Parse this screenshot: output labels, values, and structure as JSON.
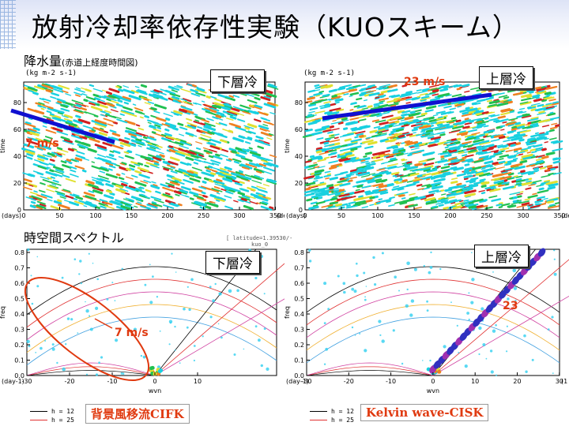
{
  "title": {
    "text": "放射冷却率依存性実験（KUOスキーム）"
  },
  "precip_section": {
    "label": "降水量",
    "sublabel": "(赤道上経度時間図)"
  },
  "spectrum_section": {
    "label": "時空間スペクトル"
  },
  "hovmoller_left": {
    "units": "(kg m-2 s-1)",
    "callout": "下層冷",
    "speed": "7 m/s",
    "ylabel": "time",
    "yticks": [
      "0",
      "20",
      "40",
      "60",
      "80"
    ],
    "xticks": [
      "0",
      "50",
      "100",
      "150",
      "200",
      "250",
      "300",
      "350"
    ],
    "yunit": "(days)",
    "xunit": "(de"
  },
  "hovmoller_right": {
    "units": "(kg m-2 s-1)",
    "callout": "上層冷",
    "speed": "23 m/s",
    "ylabel": "time",
    "yticks": [
      "0",
      "20",
      "40",
      "60",
      "80"
    ],
    "xticks": [
      "0",
      "50",
      "100",
      "150",
      "200",
      "250",
      "300",
      "350"
    ],
    "yunit": "(days)",
    "xunit": "(deg)"
  },
  "spectrum_left": {
    "callout": "下層冷",
    "speed": "7 m/s",
    "ylabel": "freq",
    "xlabel": "wvn",
    "yticks": [
      "0.0",
      "0.1",
      "0.2",
      "0.3",
      "0.4",
      "0.5",
      "0.6",
      "0.7",
      "0.8"
    ],
    "xticks": [
      "-30",
      "-20",
      "-10",
      "0",
      "10"
    ],
    "yunit": "(day-1)",
    "meta": "[ latitude=1.39530/-",
    "meta2": "kuo_0",
    "legend": [
      {
        "text": "h = 12",
        "color": "#000000"
      },
      {
        "text": "h = 25",
        "color": "#e03030"
      }
    ],
    "bottom_label": "背景風移流CIFK"
  },
  "spectrum_right": {
    "callout": "上層冷",
    "speed": "23",
    "ylabel": "freq",
    "xlabel": "wvn",
    "yticks": [
      "0.0",
      "0.1",
      "0.2",
      "0.3",
      "0.4",
      "0.5",
      "0.6",
      "0.7",
      "0.8"
    ],
    "xticks": [
      "-30",
      "-20",
      "-10",
      "0",
      "10",
      "20",
      "30"
    ],
    "yunit": "(day-1)",
    "xunit": "(1",
    "legend": [
      {
        "text": "h = 12",
        "color": "#000000"
      },
      {
        "text": "h = 25",
        "color": "#e03030"
      }
    ],
    "bottom_label": "Kelvin wave-CISK"
  },
  "colors": {
    "accent_red": "#e03a10",
    "arrow_blue": "#1010d0",
    "title_bg": "#dde3f6"
  }
}
